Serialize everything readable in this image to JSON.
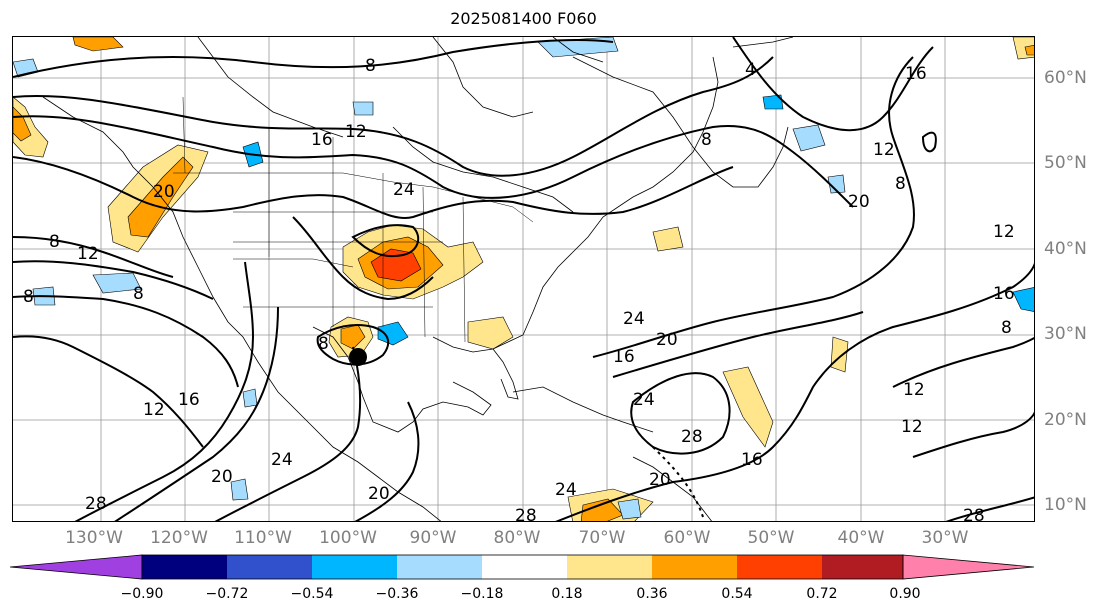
{
  "title": "2025081400 F060",
  "lon_labels": [
    "130°W",
    "120°W",
    "110°W",
    "100°W",
    "90°W",
    "80°W",
    "70°W",
    "60°W",
    "50°W",
    "40°W",
    "30°W"
  ],
  "lat_labels": [
    "60°N",
    "50°N",
    "40°N",
    "30°N",
    "20°N",
    "10°N"
  ],
  "contour_labels": [
    "8",
    "8",
    "16",
    "12",
    "24",
    "4",
    "8",
    "16",
    "12",
    "8",
    "20",
    "12",
    "8",
    "12",
    "8",
    "8",
    "16",
    "8",
    "20",
    "24",
    "20",
    "16",
    "12",
    "16",
    "24",
    "20",
    "28",
    "16",
    "12",
    "12",
    "24",
    "20",
    "28",
    "24",
    "28",
    "28",
    "20"
  ],
  "colorbar": {
    "ticks": [
      "−0.90",
      "−0.72",
      "−0.54",
      "−0.36",
      "−0.18",
      "0.18",
      "0.36",
      "0.54",
      "0.72",
      "0.90"
    ],
    "colors": [
      "#a040e0",
      "#00007f",
      "#3050cc",
      "#00b7ff",
      "#a6ddff",
      "#ffffff",
      "#ffe68c",
      "#ff9f00",
      "#ff4000",
      "#b01c22",
      "#ff80aa"
    ]
  },
  "fill_colors": {
    "light_blue": "#a6ddff",
    "blue": "#00b7ff",
    "yellow": "#ffe68c",
    "orange": "#ff9f00",
    "red_orange": "#ff4000"
  },
  "marker": "storm-center-dot"
}
